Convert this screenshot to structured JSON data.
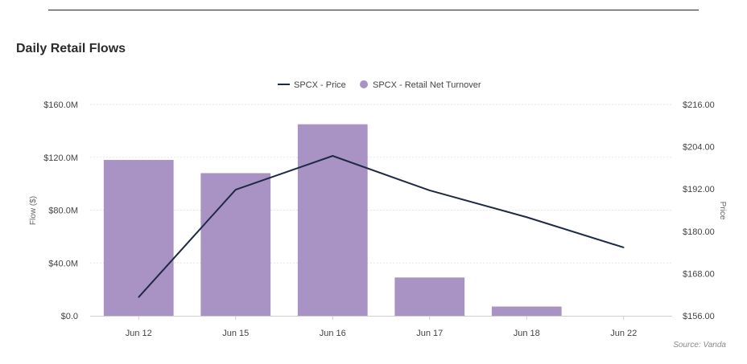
{
  "chart_data": {
    "type": "bar",
    "title": "Daily Retail Flows",
    "source": "Source: Vanda",
    "categories": [
      "Jun 12",
      "Jun 15",
      "Jun 16",
      "Jun 17",
      "Jun 18",
      "Jun 22"
    ],
    "series": [
      {
        "name": "SPCX - Retail Net Turnover",
        "type": "bar",
        "axis": "left",
        "color": "#a992c4",
        "values": [
          118000000,
          108000000,
          145000000,
          29000000,
          7000000,
          0
        ]
      },
      {
        "name": "SPCX - Price",
        "type": "line",
        "axis": "right",
        "color": "#1f2a44",
        "values": [
          161.3,
          191.8,
          201.4,
          191.6,
          184.0,
          175.4
        ]
      }
    ],
    "y_left": {
      "label": "Flow ($)",
      "ylim": [
        0,
        160000000
      ],
      "ticks": [
        "$0.0",
        "$40.0M",
        "$80.0M",
        "$120.0M",
        "$160.0M"
      ]
    },
    "y_right": {
      "label": "Price",
      "ylim": [
        156,
        216
      ],
      "ticks": [
        "$156.00",
        "$168.00",
        "$180.00",
        "$192.00",
        "$204.00",
        "$216.00"
      ]
    },
    "grid": true,
    "legend_position": "top-center"
  }
}
